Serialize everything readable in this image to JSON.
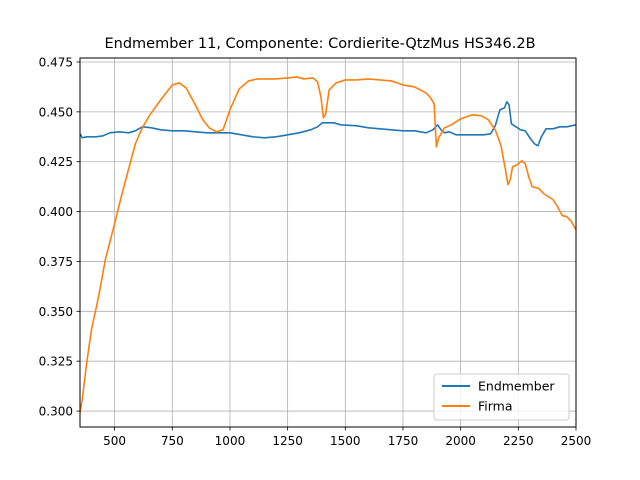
{
  "chart_data": {
    "type": "line",
    "title": "Endmember 11, Componente: Cordierite-QtzMus HS346.2B",
    "xlabel": "",
    "ylabel": "",
    "xlim": [
      350,
      2500
    ],
    "ylim": [
      0.292,
      0.477
    ],
    "x_ticks": [
      500,
      750,
      1000,
      1250,
      1500,
      1750,
      2000,
      2250,
      2500
    ],
    "y_ticks": [
      0.3,
      0.325,
      0.35,
      0.375,
      0.4,
      0.425,
      0.45,
      0.475
    ],
    "x_tick_labels": [
      "500",
      "750",
      "1000",
      "1250",
      "1500",
      "1750",
      "2000",
      "2250",
      "2500"
    ],
    "y_tick_labels": [
      "0.300",
      "0.325",
      "0.350",
      "0.375",
      "0.400",
      "0.425",
      "0.450",
      "0.475"
    ],
    "grid": true,
    "legend_position": "lower right",
    "series": [
      {
        "name": "Endmember",
        "color": "#1f77b4",
        "points": [
          [
            350,
            0.439
          ],
          [
            360,
            0.437
          ],
          [
            380,
            0.4375
          ],
          [
            420,
            0.4375
          ],
          [
            450,
            0.438
          ],
          [
            480,
            0.4395
          ],
          [
            520,
            0.44
          ],
          [
            560,
            0.4395
          ],
          [
            590,
            0.4405
          ],
          [
            620,
            0.4425
          ],
          [
            660,
            0.442
          ],
          [
            700,
            0.441
          ],
          [
            750,
            0.4405
          ],
          [
            800,
            0.4405
          ],
          [
            850,
            0.44
          ],
          [
            900,
            0.4395
          ],
          [
            950,
            0.4395
          ],
          [
            1000,
            0.4395
          ],
          [
            1050,
            0.4385
          ],
          [
            1100,
            0.4375
          ],
          [
            1150,
            0.437
          ],
          [
            1200,
            0.4375
          ],
          [
            1250,
            0.4385
          ],
          [
            1300,
            0.4395
          ],
          [
            1350,
            0.441
          ],
          [
            1380,
            0.4425
          ],
          [
            1400,
            0.4445
          ],
          [
            1415,
            0.4445
          ],
          [
            1430,
            0.4445
          ],
          [
            1450,
            0.4445
          ],
          [
            1480,
            0.4435
          ],
          [
            1550,
            0.443
          ],
          [
            1600,
            0.442
          ],
          [
            1650,
            0.4415
          ],
          [
            1700,
            0.441
          ],
          [
            1750,
            0.4405
          ],
          [
            1800,
            0.4405
          ],
          [
            1850,
            0.4395
          ],
          [
            1880,
            0.441
          ],
          [
            1900,
            0.4435
          ],
          [
            1915,
            0.441
          ],
          [
            1930,
            0.4395
          ],
          [
            1950,
            0.44
          ],
          [
            1980,
            0.4385
          ],
          [
            2000,
            0.4385
          ],
          [
            2050,
            0.4385
          ],
          [
            2100,
            0.4385
          ],
          [
            2130,
            0.439
          ],
          [
            2150,
            0.443
          ],
          [
            2170,
            0.451
          ],
          [
            2190,
            0.452
          ],
          [
            2200,
            0.455
          ],
          [
            2210,
            0.4535
          ],
          [
            2220,
            0.444
          ],
          [
            2240,
            0.4425
          ],
          [
            2260,
            0.441
          ],
          [
            2280,
            0.4405
          ],
          [
            2300,
            0.437
          ],
          [
            2320,
            0.434
          ],
          [
            2335,
            0.433
          ],
          [
            2350,
            0.4375
          ],
          [
            2370,
            0.4415
          ],
          [
            2400,
            0.4415
          ],
          [
            2430,
            0.4425
          ],
          [
            2460,
            0.4425
          ],
          [
            2500,
            0.4435
          ]
        ]
      },
      {
        "name": "Firma",
        "color": "#ff7f0e",
        "points": [
          [
            350,
            0.299
          ],
          [
            360,
            0.306
          ],
          [
            380,
            0.325
          ],
          [
            400,
            0.341
          ],
          [
            430,
            0.357
          ],
          [
            460,
            0.376
          ],
          [
            500,
            0.394
          ],
          [
            530,
            0.408
          ],
          [
            560,
            0.421
          ],
          [
            590,
            0.434
          ],
          [
            620,
            0.442
          ],
          [
            650,
            0.448
          ],
          [
            700,
            0.456
          ],
          [
            750,
            0.4635
          ],
          [
            780,
            0.4645
          ],
          [
            810,
            0.462
          ],
          [
            850,
            0.4535
          ],
          [
            880,
            0.4465
          ],
          [
            910,
            0.442
          ],
          [
            940,
            0.44
          ],
          [
            970,
            0.441
          ],
          [
            1000,
            0.451
          ],
          [
            1040,
            0.4615
          ],
          [
            1080,
            0.4655
          ],
          [
            1120,
            0.4665
          ],
          [
            1200,
            0.4665
          ],
          [
            1250,
            0.467
          ],
          [
            1290,
            0.4675
          ],
          [
            1320,
            0.4665
          ],
          [
            1360,
            0.467
          ],
          [
            1380,
            0.465
          ],
          [
            1395,
            0.457
          ],
          [
            1405,
            0.447
          ],
          [
            1415,
            0.449
          ],
          [
            1430,
            0.461
          ],
          [
            1460,
            0.4645
          ],
          [
            1500,
            0.466
          ],
          [
            1550,
            0.466
          ],
          [
            1600,
            0.4665
          ],
          [
            1650,
            0.466
          ],
          [
            1700,
            0.4655
          ],
          [
            1750,
            0.4635
          ],
          [
            1800,
            0.4625
          ],
          [
            1850,
            0.4595
          ],
          [
            1870,
            0.457
          ],
          [
            1885,
            0.454
          ],
          [
            1895,
            0.4325
          ],
          [
            1905,
            0.437
          ],
          [
            1930,
            0.442
          ],
          [
            1960,
            0.4435
          ],
          [
            2000,
            0.4465
          ],
          [
            2050,
            0.4485
          ],
          [
            2090,
            0.448
          ],
          [
            2120,
            0.446
          ],
          [
            2150,
            0.441
          ],
          [
            2175,
            0.433
          ],
          [
            2195,
            0.4205
          ],
          [
            2205,
            0.4135
          ],
          [
            2215,
            0.416
          ],
          [
            2225,
            0.4225
          ],
          [
            2245,
            0.4235
          ],
          [
            2265,
            0.4255
          ],
          [
            2280,
            0.424
          ],
          [
            2295,
            0.4175
          ],
          [
            2310,
            0.4125
          ],
          [
            2340,
            0.4115
          ],
          [
            2360,
            0.409
          ],
          [
            2380,
            0.4075
          ],
          [
            2400,
            0.406
          ],
          [
            2420,
            0.4025
          ],
          [
            2440,
            0.398
          ],
          [
            2460,
            0.3975
          ],
          [
            2480,
            0.395
          ],
          [
            2500,
            0.391
          ]
        ]
      }
    ]
  }
}
